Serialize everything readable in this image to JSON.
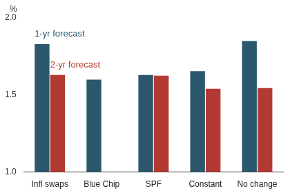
{
  "chart_data": {
    "type": "bar",
    "ylabel": "%",
    "categories": [
      "Infl swaps",
      "Blue Chip",
      "SPF",
      "Constant",
      "No change"
    ],
    "series": [
      {
        "name": "1-yr forecast",
        "color": "#2b586d",
        "values": [
          1.83,
          1.6,
          1.63,
          1.655,
          1.85
        ]
      },
      {
        "name": "2-yr forecast",
        "color": "#b33a33",
        "values": [
          1.63,
          null,
          1.625,
          1.54,
          1.545
        ]
      }
    ],
    "ylim": [
      1.0,
      2.0
    ],
    "yticks": [
      {
        "value": 1.0,
        "label": "1.0"
      },
      {
        "value": 1.5,
        "label": "1.5"
      },
      {
        "value": 2.0,
        "label": "2.0"
      }
    ],
    "grid": false,
    "legend": "upper left"
  }
}
